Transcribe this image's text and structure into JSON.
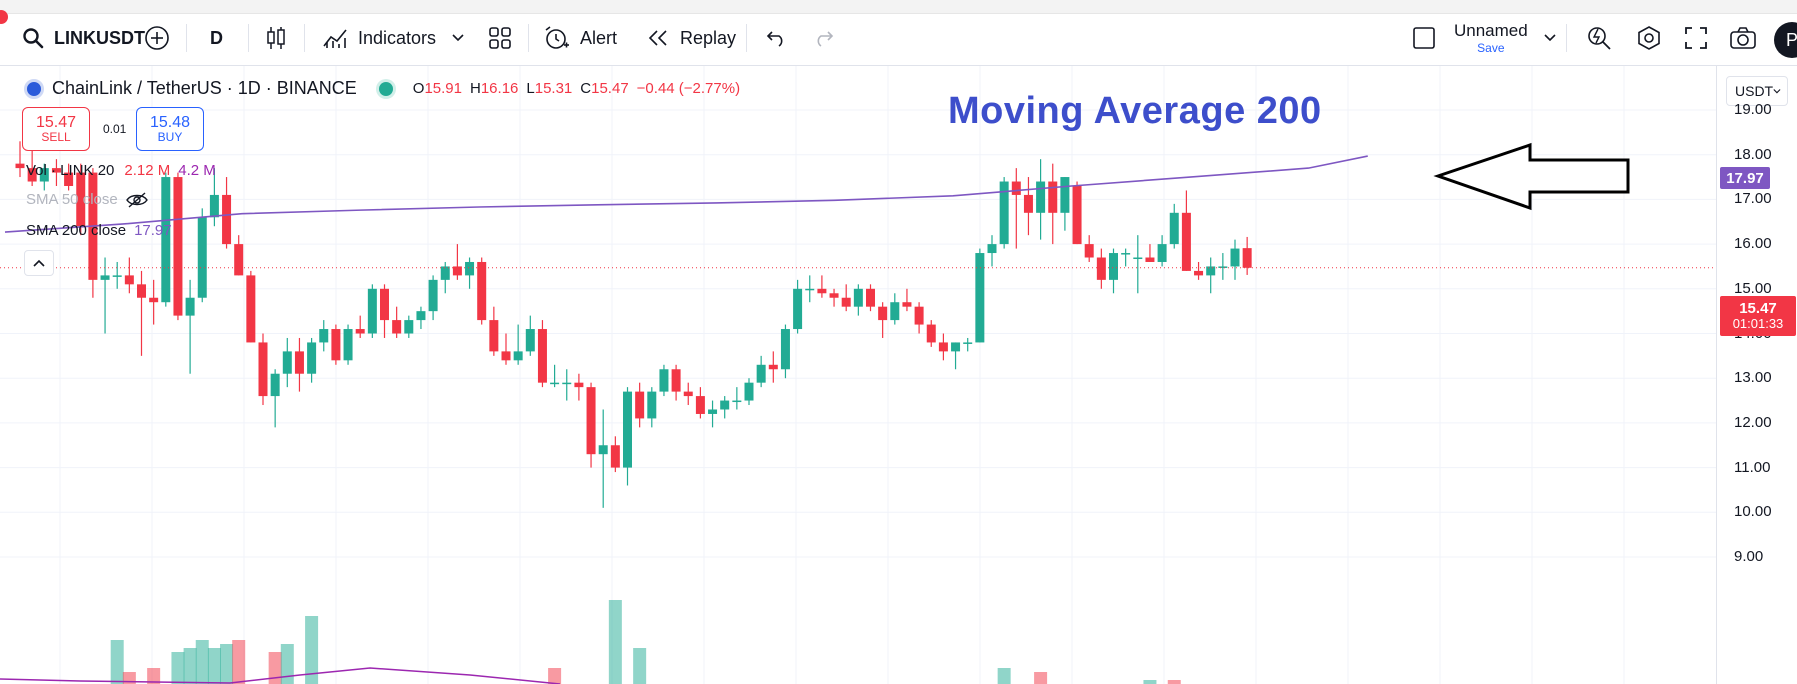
{
  "toolbar": {
    "symbol": "LINKUSDT",
    "interval": "D",
    "indicators_label": "Indicators",
    "alert_label": "Alert",
    "replay_label": "Replay",
    "layout_name": "Unnamed",
    "save_label": "Save",
    "avatar_letter": "P"
  },
  "legend": {
    "title": "ChainLink / TetherUS · 1D · BINANCE",
    "open_key": "O",
    "open": "15.91",
    "high_key": "H",
    "high": "16.16",
    "low_key": "L",
    "low": "15.31",
    "close_key": "C",
    "close": "15.47",
    "change": "−0.44 (−2.77%)"
  },
  "trade": {
    "sell_price": "15.47",
    "sell_label": "SELL",
    "spread": "0.01",
    "buy_price": "15.48",
    "buy_label": "BUY"
  },
  "indicators": {
    "vol_label": "Vol · LINK 20",
    "vol_value_a": "2.12 M",
    "vol_value_b": "4.2 M",
    "sma50_label": "SMA 50 close",
    "sma200_label": "SMA 200 close",
    "sma200_value": "17.97"
  },
  "annotation": "Moving Average 200",
  "price_scale": {
    "currency": "USDT",
    "ticks": [
      "19.00",
      "18.00",
      "17.00",
      "16.00",
      "15.00",
      "14.00",
      "13.00",
      "12.00",
      "11.00",
      "10.00",
      "9.00"
    ],
    "sma_tag": "17.97",
    "price_tag": "15.47",
    "countdown": "01:01:33"
  },
  "colors": {
    "up": "#22ab94",
    "down": "#f23645",
    "sma200": "#7e57c2",
    "vol_ma": "#9c27b0",
    "annotation": "#3d4ecb",
    "accent": "#2962ff"
  },
  "icons": {
    "search": "search-icon",
    "compare": "plus-circle-icon",
    "chart_type": "candles-icon",
    "indicators": "indicators-icon",
    "templates": "grid-icon",
    "alert": "alarm-clock-icon",
    "replay": "rewind-icon",
    "undo": "undo-icon",
    "redo": "redo-icon",
    "layout": "square-icon",
    "quick_search": "lightning-search-icon",
    "settings": "hexagon-gear-icon",
    "fullscreen": "fullscreen-icon",
    "snapshot": "camera-icon"
  },
  "chart_data": {
    "type": "candlestick",
    "symbol": "LINKUSDT",
    "interval": "1D",
    "ylim": [
      8.8,
      19.6
    ],
    "candles": [
      {
        "o": 17.8,
        "h": 18.3,
        "l": 17.5,
        "c": 17.7
      },
      {
        "o": 17.7,
        "h": 18.2,
        "l": 17.3,
        "c": 17.4
      },
      {
        "o": 17.4,
        "h": 17.8,
        "l": 17.2,
        "c": 17.7
      },
      {
        "o": 17.7,
        "h": 17.9,
        "l": 17.3,
        "c": 17.6
      },
      {
        "o": 17.6,
        "h": 17.8,
        "l": 17.2,
        "c": 17.3
      },
      {
        "o": 17.6,
        "h": 17.8,
        "l": 16.2,
        "c": 16.4
      },
      {
        "o": 17.6,
        "h": 17.7,
        "l": 14.8,
        "c": 15.2
      },
      {
        "o": 15.2,
        "h": 15.7,
        "l": 14.0,
        "c": 15.3
      },
      {
        "o": 15.3,
        "h": 15.6,
        "l": 15.0,
        "c": 15.3
      },
      {
        "o": 15.3,
        "h": 15.7,
        "l": 14.9,
        "c": 15.1
      },
      {
        "o": 15.1,
        "h": 15.4,
        "l": 13.5,
        "c": 14.8
      },
      {
        "o": 14.8,
        "h": 15.2,
        "l": 14.2,
        "c": 14.7
      },
      {
        "o": 14.7,
        "h": 17.6,
        "l": 14.6,
        "c": 17.5
      },
      {
        "o": 17.5,
        "h": 17.6,
        "l": 14.3,
        "c": 14.4
      },
      {
        "o": 14.4,
        "h": 15.2,
        "l": 13.1,
        "c": 14.8
      },
      {
        "o": 14.8,
        "h": 16.8,
        "l": 14.7,
        "c": 16.6
      },
      {
        "o": 16.6,
        "h": 17.7,
        "l": 16.4,
        "c": 17.1
      },
      {
        "o": 17.1,
        "h": 17.5,
        "l": 15.9,
        "c": 16.0
      },
      {
        "o": 16.0,
        "h": 16.2,
        "l": 15.3,
        "c": 15.3
      },
      {
        "o": 15.3,
        "h": 15.4,
        "l": 13.8,
        "c": 13.8
      },
      {
        "o": 13.8,
        "h": 14.0,
        "l": 12.4,
        "c": 12.6
      },
      {
        "o": 12.6,
        "h": 13.2,
        "l": 11.9,
        "c": 13.1
      },
      {
        "o": 13.1,
        "h": 13.9,
        "l": 12.8,
        "c": 13.6
      },
      {
        "o": 13.6,
        "h": 13.9,
        "l": 12.7,
        "c": 13.1
      },
      {
        "o": 13.1,
        "h": 13.9,
        "l": 12.9,
        "c": 13.8
      },
      {
        "o": 13.8,
        "h": 14.3,
        "l": 13.6,
        "c": 14.1
      },
      {
        "o": 14.1,
        "h": 14.2,
        "l": 13.3,
        "c": 13.4
      },
      {
        "o": 13.4,
        "h": 14.2,
        "l": 13.3,
        "c": 14.1
      },
      {
        "o": 14.1,
        "h": 14.4,
        "l": 13.9,
        "c": 14.0
      },
      {
        "o": 14.0,
        "h": 15.1,
        "l": 13.9,
        "c": 15.0
      },
      {
        "o": 15.0,
        "h": 15.1,
        "l": 13.9,
        "c": 14.3
      },
      {
        "o": 14.3,
        "h": 14.6,
        "l": 13.9,
        "c": 14.0
      },
      {
        "o": 14.0,
        "h": 14.4,
        "l": 13.9,
        "c": 14.3
      },
      {
        "o": 14.3,
        "h": 14.6,
        "l": 14.1,
        "c": 14.5
      },
      {
        "o": 14.5,
        "h": 15.3,
        "l": 14.3,
        "c": 15.2
      },
      {
        "o": 15.2,
        "h": 15.6,
        "l": 14.9,
        "c": 15.5
      },
      {
        "o": 15.5,
        "h": 16.0,
        "l": 15.2,
        "c": 15.3
      },
      {
        "o": 15.3,
        "h": 15.7,
        "l": 15.0,
        "c": 15.6
      },
      {
        "o": 15.6,
        "h": 15.7,
        "l": 14.2,
        "c": 14.3
      },
      {
        "o": 14.3,
        "h": 14.6,
        "l": 13.5,
        "c": 13.6
      },
      {
        "o": 13.6,
        "h": 14.0,
        "l": 13.3,
        "c": 13.4
      },
      {
        "o": 13.4,
        "h": 14.2,
        "l": 13.3,
        "c": 13.6
      },
      {
        "o": 13.6,
        "h": 14.4,
        "l": 13.5,
        "c": 14.1
      },
      {
        "o": 14.1,
        "h": 14.3,
        "l": 12.8,
        "c": 12.9
      },
      {
        "o": 12.9,
        "h": 13.3,
        "l": 12.8,
        "c": 12.9
      },
      {
        "o": 12.9,
        "h": 13.2,
        "l": 12.5,
        "c": 12.9
      },
      {
        "o": 12.9,
        "h": 13.1,
        "l": 12.5,
        "c": 12.8
      },
      {
        "o": 12.8,
        "h": 12.9,
        "l": 11.0,
        "c": 11.3
      },
      {
        "o": 11.3,
        "h": 12.3,
        "l": 10.1,
        "c": 11.5
      },
      {
        "o": 11.5,
        "h": 11.7,
        "l": 10.9,
        "c": 11.0
      },
      {
        "o": 11.0,
        "h": 12.8,
        "l": 10.6,
        "c": 12.7
      },
      {
        "o": 12.7,
        "h": 12.9,
        "l": 11.9,
        "c": 12.1
      },
      {
        "o": 12.1,
        "h": 12.8,
        "l": 11.9,
        "c": 12.7
      },
      {
        "o": 12.7,
        "h": 13.3,
        "l": 12.6,
        "c": 13.2
      },
      {
        "o": 13.2,
        "h": 13.3,
        "l": 12.5,
        "c": 12.7
      },
      {
        "o": 12.7,
        "h": 12.9,
        "l": 12.4,
        "c": 12.6
      },
      {
        "o": 12.6,
        "h": 12.8,
        "l": 12.1,
        "c": 12.2
      },
      {
        "o": 12.2,
        "h": 12.5,
        "l": 11.9,
        "c": 12.3
      },
      {
        "o": 12.3,
        "h": 12.6,
        "l": 12.1,
        "c": 12.5
      },
      {
        "o": 12.5,
        "h": 12.8,
        "l": 12.3,
        "c": 12.5
      },
      {
        "o": 12.5,
        "h": 13.0,
        "l": 12.4,
        "c": 12.9
      },
      {
        "o": 12.9,
        "h": 13.5,
        "l": 12.8,
        "c": 13.3
      },
      {
        "o": 13.3,
        "h": 13.6,
        "l": 12.9,
        "c": 13.2
      },
      {
        "o": 13.2,
        "h": 14.2,
        "l": 13.0,
        "c": 14.1
      },
      {
        "o": 14.1,
        "h": 15.2,
        "l": 14.0,
        "c": 15.0
      },
      {
        "o": 15.0,
        "h": 15.3,
        "l": 14.7,
        "c": 15.0
      },
      {
        "o": 15.0,
        "h": 15.3,
        "l": 14.8,
        "c": 14.9
      },
      {
        "o": 14.9,
        "h": 15.0,
        "l": 14.6,
        "c": 14.8
      },
      {
        "o": 14.8,
        "h": 15.1,
        "l": 14.5,
        "c": 14.6
      },
      {
        "o": 14.6,
        "h": 15.1,
        "l": 14.4,
        "c": 15.0
      },
      {
        "o": 15.0,
        "h": 15.1,
        "l": 14.5,
        "c": 14.6
      },
      {
        "o": 14.6,
        "h": 14.7,
        "l": 13.9,
        "c": 14.3
      },
      {
        "o": 14.3,
        "h": 14.9,
        "l": 14.2,
        "c": 14.7
      },
      {
        "o": 14.7,
        "h": 15.0,
        "l": 14.5,
        "c": 14.6
      },
      {
        "o": 14.6,
        "h": 14.7,
        "l": 14.0,
        "c": 14.2
      },
      {
        "o": 14.2,
        "h": 14.3,
        "l": 13.7,
        "c": 13.8
      },
      {
        "o": 13.8,
        "h": 14.0,
        "l": 13.4,
        "c": 13.6
      },
      {
        "o": 13.6,
        "h": 13.8,
        "l": 13.2,
        "c": 13.8
      },
      {
        "o": 13.8,
        "h": 13.9,
        "l": 13.6,
        "c": 13.8
      },
      {
        "o": 13.8,
        "h": 15.9,
        "l": 13.8,
        "c": 15.8
      },
      {
        "o": 15.8,
        "h": 16.2,
        "l": 15.5,
        "c": 16.0
      },
      {
        "o": 16.0,
        "h": 17.5,
        "l": 15.9,
        "c": 17.4
      },
      {
        "o": 17.4,
        "h": 17.7,
        "l": 15.9,
        "c": 17.1
      },
      {
        "o": 17.1,
        "h": 17.5,
        "l": 16.2,
        "c": 16.7
      },
      {
        "o": 16.7,
        "h": 17.9,
        "l": 16.1,
        "c": 17.4
      },
      {
        "o": 17.4,
        "h": 17.8,
        "l": 16.0,
        "c": 16.7
      },
      {
        "o": 16.7,
        "h": 17.5,
        "l": 16.3,
        "c": 17.5
      },
      {
        "o": 17.3,
        "h": 17.4,
        "l": 16.0,
        "c": 16.0
      },
      {
        "o": 16.0,
        "h": 16.2,
        "l": 15.6,
        "c": 15.7
      },
      {
        "o": 15.7,
        "h": 15.9,
        "l": 15.0,
        "c": 15.2
      },
      {
        "o": 15.2,
        "h": 15.9,
        "l": 14.9,
        "c": 15.8
      },
      {
        "o": 15.8,
        "h": 15.9,
        "l": 15.5,
        "c": 15.8
      },
      {
        "o": 15.7,
        "h": 16.2,
        "l": 14.9,
        "c": 15.7
      },
      {
        "o": 15.7,
        "h": 16.0,
        "l": 15.6,
        "c": 15.6
      },
      {
        "o": 15.6,
        "h": 16.2,
        "l": 15.5,
        "c": 16.0
      },
      {
        "o": 16.0,
        "h": 16.9,
        "l": 15.9,
        "c": 16.7
      },
      {
        "o": 16.7,
        "h": 17.2,
        "l": 15.4,
        "c": 15.4
      },
      {
        "o": 15.4,
        "h": 15.6,
        "l": 15.2,
        "c": 15.3
      },
      {
        "o": 15.3,
        "h": 15.7,
        "l": 14.9,
        "c": 15.5
      },
      {
        "o": 15.5,
        "h": 15.8,
        "l": 15.2,
        "c": 15.5
      },
      {
        "o": 15.5,
        "h": 16.1,
        "l": 15.2,
        "c": 15.9
      },
      {
        "o": 15.91,
        "h": 16.16,
        "l": 15.31,
        "c": 15.47
      }
    ],
    "sma200": [
      [
        0,
        16.27
      ],
      [
        10,
        16.45
      ],
      [
        20,
        16.68
      ],
      [
        30,
        16.76
      ],
      [
        40,
        16.83
      ],
      [
        50,
        16.88
      ],
      [
        60,
        16.92
      ],
      [
        70,
        16.98
      ],
      [
        80,
        17.08
      ],
      [
        90,
        17.3
      ],
      [
        100,
        17.5
      ],
      [
        110,
        17.7
      ],
      [
        115,
        17.97
      ]
    ],
    "volume": [
      {
        "i": 8,
        "v": 1.1,
        "up": true
      },
      {
        "i": 9,
        "v": 0.3,
        "up": false
      },
      {
        "i": 11,
        "v": 0.4,
        "up": false
      },
      {
        "i": 13,
        "v": 0.8,
        "up": true
      },
      {
        "i": 14,
        "v": 0.9,
        "up": true
      },
      {
        "i": 15,
        "v": 1.1,
        "up": true
      },
      {
        "i": 16,
        "v": 0.9,
        "up": true
      },
      {
        "i": 17,
        "v": 1.0,
        "up": true
      },
      {
        "i": 18,
        "v": 1.1,
        "up": false
      },
      {
        "i": 21,
        "v": 0.8,
        "up": false
      },
      {
        "i": 22,
        "v": 1.0,
        "up": true
      },
      {
        "i": 24,
        "v": 1.7,
        "up": true
      },
      {
        "i": 44,
        "v": 0.4,
        "up": false
      },
      {
        "i": 49,
        "v": 2.1,
        "up": true
      },
      {
        "i": 51,
        "v": 0.9,
        "up": true
      },
      {
        "i": 81,
        "v": 0.4,
        "up": true
      },
      {
        "i": 84,
        "v": 0.3,
        "up": false
      },
      {
        "i": 93,
        "v": 0.1,
        "up": true
      },
      {
        "i": 95,
        "v": 0.1,
        "up": false
      }
    ]
  }
}
